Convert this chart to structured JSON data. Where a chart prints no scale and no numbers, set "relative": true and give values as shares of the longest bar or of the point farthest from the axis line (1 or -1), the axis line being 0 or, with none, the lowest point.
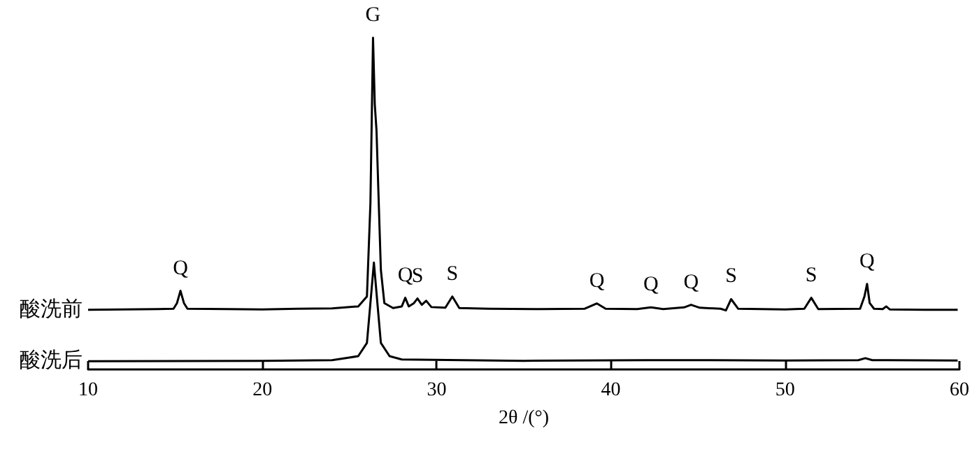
{
  "chart_data": {
    "type": "line",
    "relative": true,
    "xlabel": "2θ /(°)",
    "xlim": [
      10,
      60
    ],
    "xticks": [
      10,
      20,
      30,
      40,
      50,
      60
    ],
    "grid": false,
    "legend": false,
    "marker": "none",
    "line_style": "solid",
    "series": [
      {
        "name": "酸洗前",
        "color": "#000000",
        "x": [
          10,
          12,
          14,
          14.9,
          15.1,
          15.3,
          15.5,
          15.7,
          18,
          20,
          22,
          24,
          25.5,
          26,
          26.2,
          26.35,
          26.45,
          26.55,
          26.65,
          26.8,
          27,
          27.5,
          28,
          28.2,
          28.4,
          28.7,
          28.9,
          29.15,
          29.4,
          29.7,
          30.5,
          30.9,
          31.3,
          33,
          36,
          38.5,
          39.2,
          39.7,
          41.5,
          42.3,
          43,
          44.2,
          44.6,
          45.1,
          46.3,
          46.6,
          46.9,
          47.3,
          50,
          51.1,
          51.5,
          51.9,
          54.3,
          54.55,
          54.7,
          54.85,
          55.1,
          55.6,
          55.8,
          56,
          58,
          59.9
        ],
        "values": [
          0.18,
          0.181,
          0.182,
          0.183,
          0.2,
          0.237,
          0.2,
          0.183,
          0.182,
          0.181,
          0.183,
          0.184,
          0.19,
          0.22,
          0.5,
          1,
          0.8,
          0.72,
          0.55,
          0.3,
          0.2,
          0.185,
          0.19,
          0.216,
          0.19,
          0.2,
          0.214,
          0.195,
          0.207,
          0.188,
          0.186,
          0.22,
          0.185,
          0.183,
          0.182,
          0.183,
          0.199,
          0.183,
          0.182,
          0.187,
          0.182,
          0.187,
          0.195,
          0.186,
          0.183,
          0.178,
          0.212,
          0.183,
          0.181,
          0.183,
          0.216,
          0.182,
          0.183,
          0.22,
          0.258,
          0.2,
          0.183,
          0.182,
          0.19,
          0.181,
          0.18,
          0.18
        ]
      },
      {
        "name": "酸洗后",
        "color": "#000000",
        "x": [
          10,
          20,
          24,
          25.5,
          26,
          26.2,
          26.4,
          26.6,
          26.8,
          27.3,
          28,
          35,
          42,
          44,
          50,
          54.2,
          54.6,
          55,
          59.9
        ],
        "values": [
          0.025,
          0.026,
          0.028,
          0.04,
          0.08,
          0.2,
          0.322,
          0.2,
          0.08,
          0.04,
          0.03,
          0.026,
          0.028,
          0.028,
          0.027,
          0.028,
          0.034,
          0.028,
          0.027
        ]
      }
    ],
    "annotations": [
      {
        "text": "Q",
        "x": 15.3,
        "y": 0.237
      },
      {
        "text": "G",
        "x": 26.35,
        "y": 1
      },
      {
        "text": "Q",
        "x": 28.2,
        "y": 0.216
      },
      {
        "text": "S",
        "x": 28.9,
        "y": 0.214
      },
      {
        "text": "S",
        "x": 30.9,
        "y": 0.22
      },
      {
        "text": "Q",
        "x": 39.2,
        "y": 0.199
      },
      {
        "text": "Q",
        "x": 42.3,
        "y": 0.187
      },
      {
        "text": "Q",
        "x": 44.6,
        "y": 0.195
      },
      {
        "text": "S",
        "x": 46.9,
        "y": 0.212
      },
      {
        "text": "S",
        "x": 51.5,
        "y": 0.216
      },
      {
        "text": "Q",
        "x": 54.7,
        "y": 0.258
      }
    ]
  }
}
